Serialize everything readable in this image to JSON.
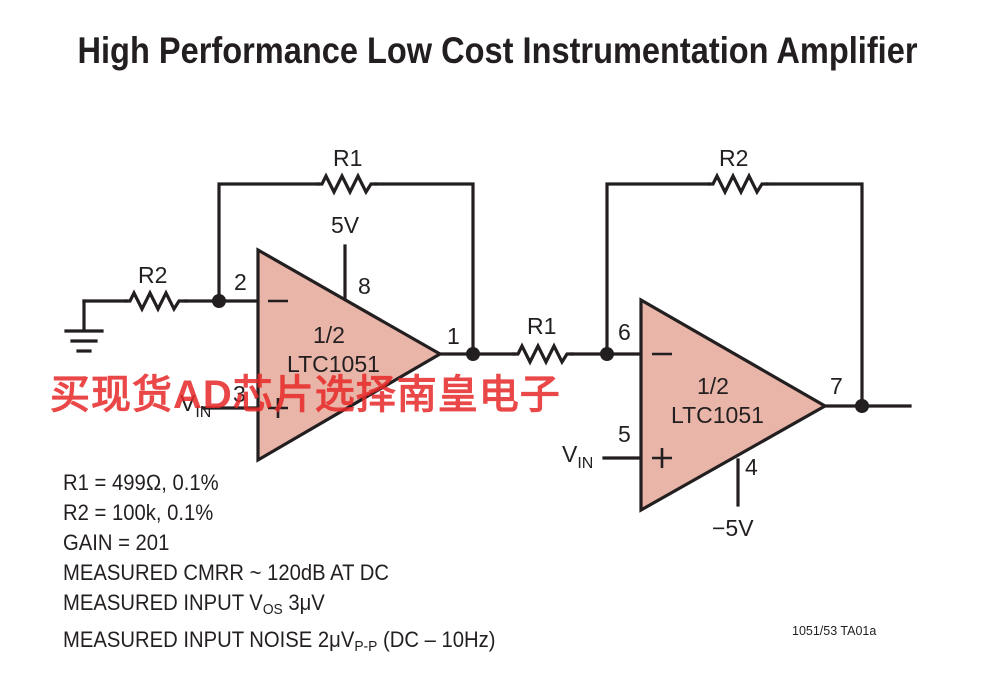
{
  "title": "High Performance Low Cost Instrumentation Amplifier",
  "components": {
    "opamp1": {
      "section": "1/2",
      "part": "LTC1051",
      "pin_inv": "2",
      "pin_noninv": "3",
      "pin_out": "1",
      "pin_supply": "8",
      "supply": "5V",
      "input_label": "V",
      "input_sub": "IN"
    },
    "opamp2": {
      "section": "1/2",
      "part": "LTC1051",
      "pin_inv": "6",
      "pin_noninv": "5",
      "pin_out": "7",
      "pin_supply": "4",
      "supply": "−5V",
      "input_label": "V",
      "input_sub": "IN"
    },
    "r1_feedback": "R1",
    "r2_input": "R2",
    "r1_series": "R1",
    "r2_feedback": "R2"
  },
  "notes": {
    "r1": "R1 = 499Ω, 0.1%",
    "r2": "R2 = 100k, 0.1%",
    "gain": "GAIN = 201",
    "cmrr": "MEASURED CMRR ~ 120dB AT DC",
    "vos_prefix": "MEASURED INPUT V",
    "vos_sub": "OS",
    "vos_value": " 3μV",
    "noise_prefix": "MEASURED INPUT NOISE 2μV",
    "noise_sub": "P-P",
    "noise_suffix": " (DC – 10Hz)"
  },
  "figure_code": "1051/53 TA01a",
  "watermark": "买现货AD芯片选择南皇电子",
  "colors": {
    "opamp_fill": "#e8b5a8",
    "line": "#231f20",
    "watermark": "#e62828"
  }
}
